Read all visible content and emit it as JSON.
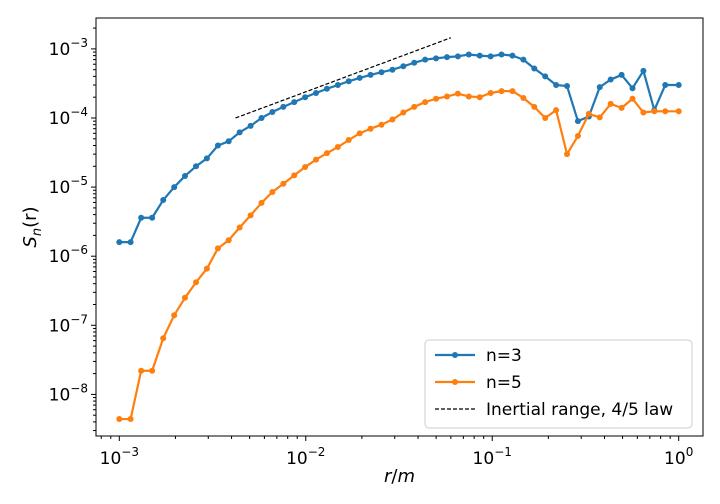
{
  "chart_data": {
    "type": "line",
    "xscale": "log",
    "yscale": "log",
    "xlim": [
      0.00075,
      1.35
    ],
    "ylim": [
      2.5e-09,
      0.0028
    ],
    "xlabel": {
      "base": "r",
      "sep": "/",
      "unit": "m"
    },
    "ylabel": {
      "base": "S",
      "sub": "n",
      "arg": "(r)"
    },
    "x_ticks": [
      {
        "value": 0.001,
        "base": "10",
        "exp": "−3"
      },
      {
        "value": 0.01,
        "base": "10",
        "exp": "−2"
      },
      {
        "value": 0.1,
        "base": "10",
        "exp": "−1"
      },
      {
        "value": 1,
        "base": "10",
        "exp": "0"
      }
    ],
    "y_ticks": [
      {
        "value": 1e-08,
        "base": "10",
        "exp": "−8"
      },
      {
        "value": 1e-07,
        "base": "10",
        "exp": "−7"
      },
      {
        "value": 1e-06,
        "base": "10",
        "exp": "−6"
      },
      {
        "value": 1e-05,
        "base": "10",
        "exp": "−5"
      },
      {
        "value": 0.0001,
        "base": "10",
        "exp": "−4"
      },
      {
        "value": 0.001,
        "base": "10",
        "exp": "−3"
      }
    ],
    "grid": false,
    "legend_position": "lower-right",
    "x": [
      0.001,
      0.00115,
      0.00131,
      0.0015,
      0.00172,
      0.00197,
      0.00225,
      0.00258,
      0.00295,
      0.00338,
      0.00386,
      0.00442,
      0.00506,
      0.00579,
      0.00662,
      0.00758,
      0.00867,
      0.00992,
      0.01135,
      0.01299,
      0.01486,
      0.017,
      0.01946,
      0.02226,
      0.02548,
      0.02915,
      0.03336,
      0.03817,
      0.04368,
      0.04998,
      0.05719,
      0.06544,
      0.07488,
      0.08568,
      0.09804,
      0.11218,
      0.12837,
      0.14689,
      0.16808,
      0.19232,
      0.22007,
      0.25182,
      0.28815,
      0.32972,
      0.37729,
      0.43172,
      0.49401,
      0.56528,
      0.64683,
      0.74015,
      0.84693,
      1.0
    ],
    "series": [
      {
        "name": "n=3",
        "color": "#1f77b4",
        "values": [
          1.6e-06,
          1.6e-06,
          3.6e-06,
          3.6e-06,
          6.5e-06,
          1e-05,
          1.45e-05,
          2e-05,
          2.6e-05,
          4e-05,
          4.6e-05,
          6.2e-05,
          7.7e-05,
          0.0001,
          0.000122,
          0.000145,
          0.00017,
          0.0002,
          0.00023,
          0.000265,
          0.0003,
          0.00034,
          0.00038,
          0.00042,
          0.00046,
          0.0005,
          0.00056,
          0.00063,
          0.0007,
          0.00073,
          0.00076,
          0.00078,
          0.00083,
          0.0008,
          0.00078,
          0.00083,
          0.0008,
          0.0007,
          0.00052,
          0.0004,
          0.0003,
          0.00029,
          9e-05,
          0.000105,
          0.00028,
          0.00036,
          0.00042,
          0.00027,
          0.00048,
          0.00013,
          0.0003,
          0.0003
        ]
      },
      {
        "name": "n=5",
        "color": "#ff7f0e",
        "values": [
          4.4e-09,
          4.4e-09,
          2.2e-08,
          2.2e-08,
          6.5e-08,
          1.4e-07,
          2.5e-07,
          4.2e-07,
          6.6e-07,
          1.3e-06,
          1.7e-06,
          2.6e-06,
          3.9e-06,
          5.9e-06,
          8.5e-06,
          1.12e-05,
          1.48e-05,
          1.95e-05,
          2.5e-05,
          3.1e-05,
          3.8e-05,
          4.8e-05,
          6e-05,
          7e-05,
          8e-05,
          9.5e-05,
          0.00012,
          0.000145,
          0.00017,
          0.00019,
          0.000205,
          0.000225,
          0.000205,
          0.0002,
          0.00023,
          0.000245,
          0.000245,
          0.000195,
          0.000145,
          0.0001,
          0.00013,
          3e-05,
          5.5e-05,
          0.000115,
          0.000102,
          0.00016,
          0.00014,
          0.00019,
          0.00012,
          0.000125,
          0.000125,
          0.000125
        ]
      }
    ],
    "reference_line": {
      "name": "Inertial range, 4/5 law",
      "color": "#000000",
      "style": "dashed",
      "x": [
        0.0042,
        0.06
      ],
      "y": [
        0.0001,
        0.00145
      ]
    }
  }
}
